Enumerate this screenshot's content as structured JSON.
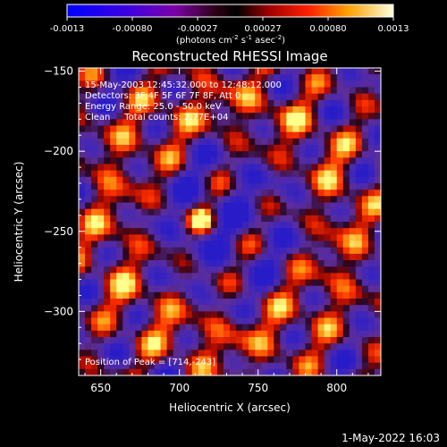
{
  "colorbar": {
    "ticks": [
      "-0.0013",
      "-0.00080",
      "-0.00027",
      "0.00027",
      "0.00080",
      "0.0013"
    ],
    "unit_main": "(photons cm",
    "unit_exp1": "-2",
    "unit_mid": " s",
    "unit_exp2": "-1",
    "unit_mid2": " asec",
    "unit_exp3": "-2",
    "unit_end": ")"
  },
  "header": {
    "title": "Reconstructed RHESSI Image"
  },
  "info": {
    "line1": "15-May-2003 12:45:32.000 to 12:48:12.000",
    "line2": "Detectors: 3F 4F 5F 6F 7F 8F, Att 0",
    "line3": "Energy Range: 25.0 - 50.0 keV",
    "line4": "Clean     Total counts: 2.77E+04",
    "peak": "Position of Peak = [714,-243]"
  },
  "footer": {
    "date": "1-May-2022 16:03"
  },
  "colors": {
    "map_low": "#2a1cc8",
    "map_mid": "#5a2ca0",
    "map_high": "#ff2000",
    "map_peak": "#ffff60"
  },
  "chart_data": {
    "type": "heatmap",
    "title": "Reconstructed RHESSI Image",
    "xlabel": "Heliocentric X (arcsec)",
    "ylabel": "Heliocentric Y (arcsec)",
    "xlim": [
      636,
      828
    ],
    "ylim": [
      -340,
      -148
    ],
    "xticks": [
      650,
      700,
      750,
      800
    ],
    "yticks": [
      -150,
      -200,
      -250,
      -300
    ],
    "peak": [
      714,
      -243
    ],
    "colorbar_range": [
      -0.0013,
      0.0013
    ],
    "grid": false
  }
}
